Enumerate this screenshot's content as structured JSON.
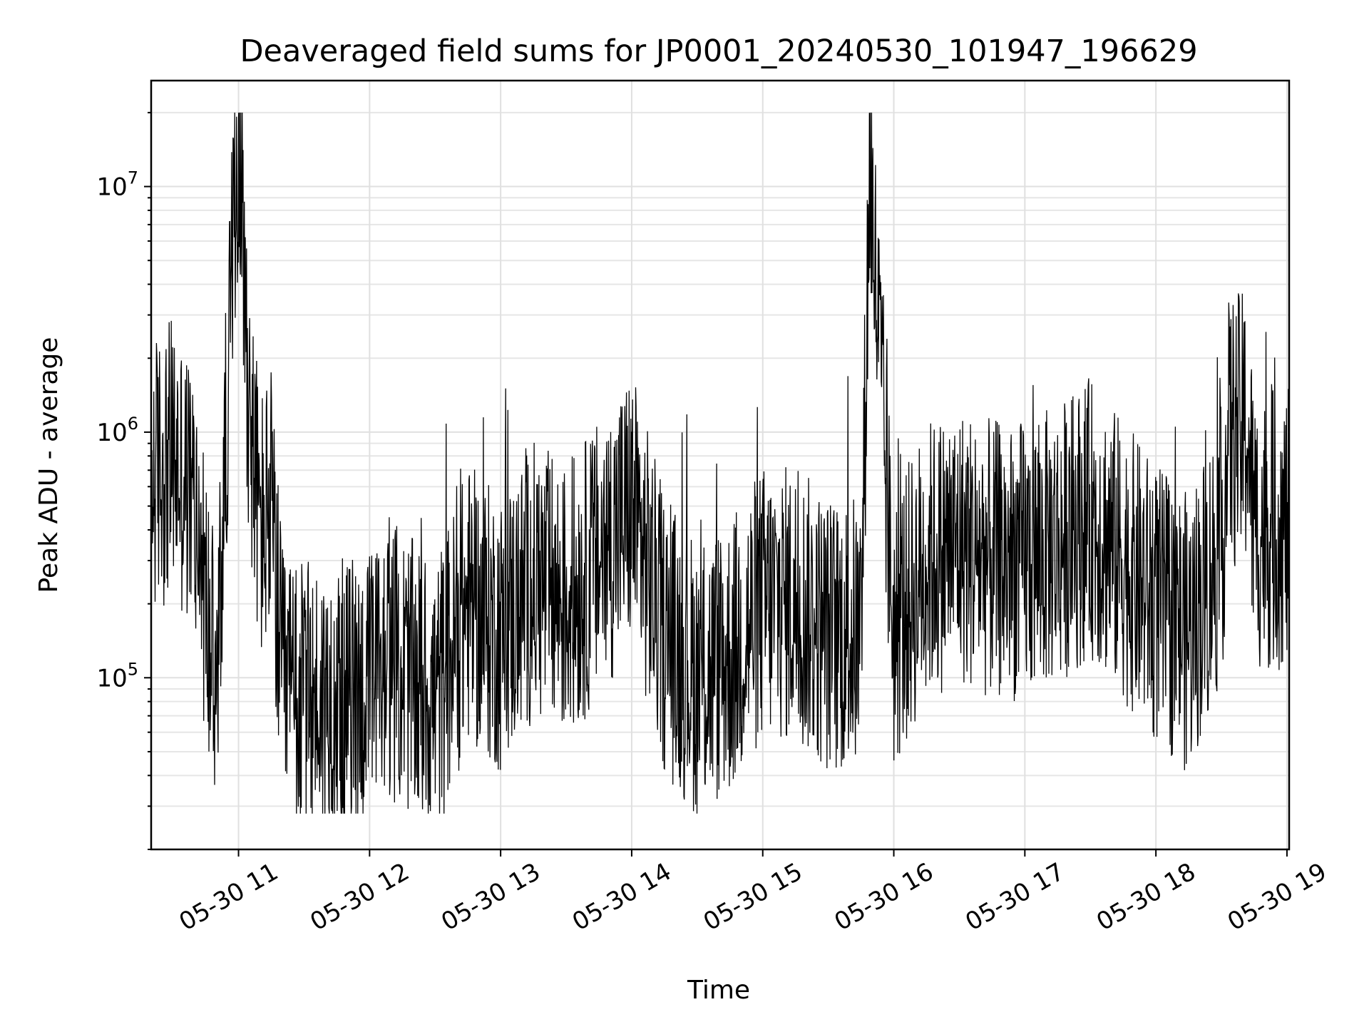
{
  "chart_data": {
    "type": "line",
    "title": "Deaveraged field sums for JP0001_20240530_101947_196629",
    "xlabel": "Time",
    "ylabel": "Peak ADU - average",
    "xscale": "time",
    "yscale": "log",
    "xlim": [
      "2024-05-30 10:20",
      "2024-05-30 19:01"
    ],
    "ylim": [
      20000,
      27000000
    ],
    "grid": true,
    "legend": "none",
    "line_color": "#000000",
    "x_ticks": [
      "05-30 11",
      "05-30 12",
      "05-30 13",
      "05-30 14",
      "05-30 15",
      "05-30 16",
      "05-30 17",
      "05-30 18",
      "05-30 19"
    ],
    "y_ticks": [
      {
        "value": 100000,
        "base": "10",
        "exp": "5"
      },
      {
        "value": 1000000,
        "base": "10",
        "exp": "6"
      },
      {
        "value": 10000000,
        "base": "10",
        "exp": "7"
      }
    ],
    "series": [
      {
        "values_note_free": true,
        "x": [
          "2024-05-30 10:20",
          "2024-05-30 10:30",
          "2024-05-30 10:40",
          "2024-05-30 10:45",
          "2024-05-30 10:50",
          "2024-05-30 10:55",
          "2024-05-30 11:00",
          "2024-05-30 11:05",
          "2024-05-30 11:10",
          "2024-05-30 11:15",
          "2024-05-30 11:20",
          "2024-05-30 11:30",
          "2024-05-30 11:45",
          "2024-05-30 12:00",
          "2024-05-30 12:10",
          "2024-05-30 12:30",
          "2024-05-30 12:45",
          "2024-05-30 13:00",
          "2024-05-30 13:15",
          "2024-05-30 13:30",
          "2024-05-30 13:45",
          "2024-05-30 14:00",
          "2024-05-30 14:15",
          "2024-05-30 14:30",
          "2024-05-30 14:45",
          "2024-05-30 15:00",
          "2024-05-30 15:15",
          "2024-05-30 15:30",
          "2024-05-30 15:45",
          "2024-05-30 15:49",
          "2024-05-30 16:00",
          "2024-05-30 16:15",
          "2024-05-30 16:30",
          "2024-05-30 16:45",
          "2024-05-30 17:00",
          "2024-05-30 17:15",
          "2024-05-30 17:30",
          "2024-05-30 17:45",
          "2024-05-30 18:00",
          "2024-05-30 18:15",
          "2024-05-30 18:30",
          "2024-05-30 18:38",
          "2024-05-30 18:45",
          "2024-05-30 19:00"
        ],
        "y": [
          650000,
          800000,
          500000,
          200000,
          80000,
          1500000,
          19000000,
          1200000,
          400000,
          500000,
          90000,
          80000,
          80000,
          90000,
          120000,
          80000,
          200000,
          150000,
          250000,
          200000,
          300000,
          500000,
          150000,
          100000,
          120000,
          200000,
          200000,
          150000,
          150000,
          12000000,
          150000,
          300000,
          350000,
          300000,
          300000,
          350000,
          450000,
          300000,
          200000,
          150000,
          350000,
          3600000,
          400000,
          400000
        ]
      }
    ]
  }
}
